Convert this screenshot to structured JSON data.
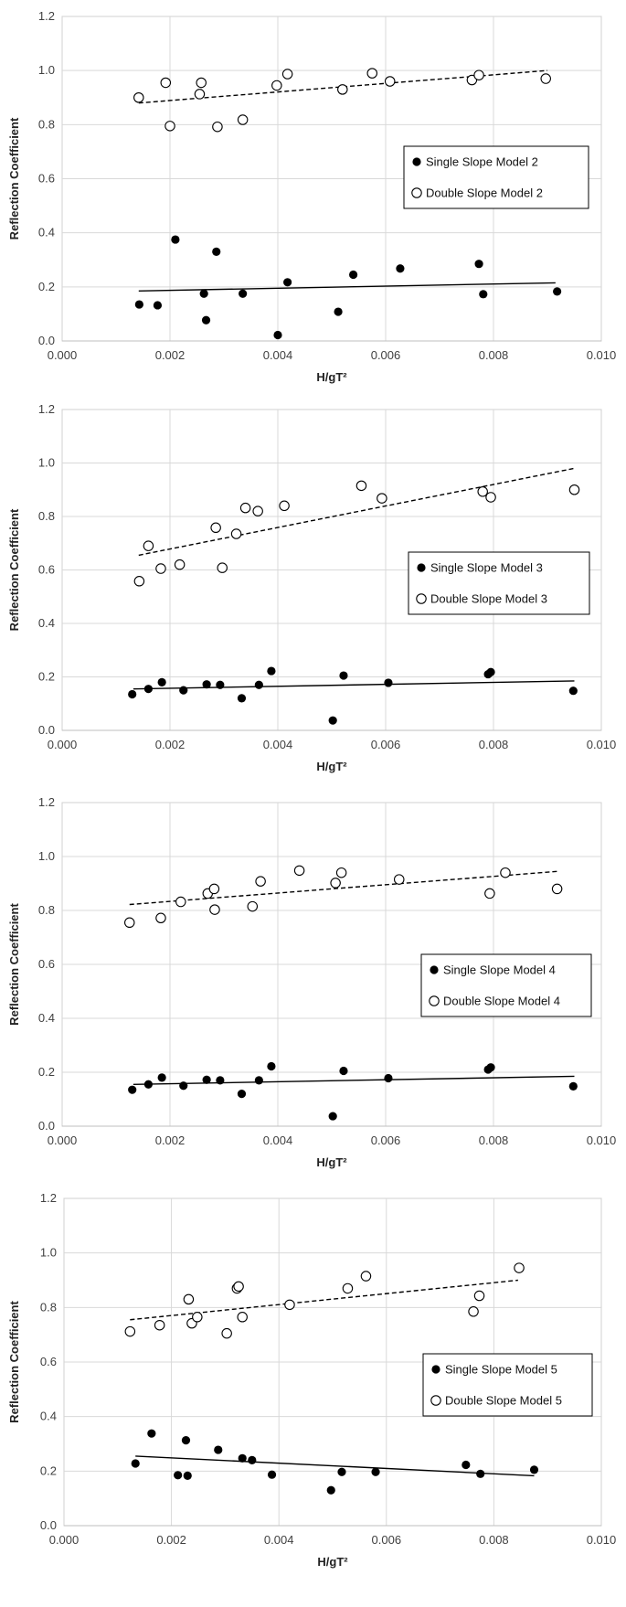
{
  "chart_data": [
    {
      "type": "scatter",
      "xlabel": "H/gT²",
      "ylabel": "Reflection Coefficient",
      "xlim": [
        0,
        0.01
      ],
      "ylim": [
        0,
        1.2
      ],
      "xticks": [
        "0.000",
        "0.002",
        "0.004",
        "0.006",
        "0.008",
        "0.010"
      ],
      "yticks": [
        "0.0",
        "0.2",
        "0.4",
        "0.6",
        "0.8",
        "1.0",
        "1.2"
      ],
      "grid": true,
      "legend_position": "right",
      "series": [
        {
          "name": "Single Slope Model 2",
          "marker": "filled-circle",
          "trend": "solid",
          "trend_line": [
            [
              0.00142,
              0.185
            ],
            [
              0.00915,
              0.215
            ]
          ],
          "points": [
            [
              0.00143,
              0.135
            ],
            [
              0.00177,
              0.132
            ],
            [
              0.0021,
              0.375
            ],
            [
              0.00263,
              0.175
            ],
            [
              0.00267,
              0.077
            ],
            [
              0.00286,
              0.33
            ],
            [
              0.00335,
              0.175
            ],
            [
              0.004,
              0.022
            ],
            [
              0.00418,
              0.217
            ],
            [
              0.00512,
              0.108
            ],
            [
              0.0054,
              0.245
            ],
            [
              0.00627,
              0.268
            ],
            [
              0.00773,
              0.285
            ],
            [
              0.00781,
              0.173
            ],
            [
              0.00918,
              0.183
            ]
          ]
        },
        {
          "name": "Double Slope Model 2",
          "marker": "open-circle",
          "trend": "dashed",
          "trend_line": [
            [
              0.00142,
              0.88
            ],
            [
              0.009,
              1.0
            ]
          ],
          "points": [
            [
              0.00142,
              0.9
            ],
            [
              0.00192,
              0.955
            ],
            [
              0.002,
              0.795
            ],
            [
              0.00255,
              0.913
            ],
            [
              0.00258,
              0.955
            ],
            [
              0.00288,
              0.792
            ],
            [
              0.00335,
              0.818
            ],
            [
              0.00398,
              0.945
            ],
            [
              0.00418,
              0.987
            ],
            [
              0.0052,
              0.93
            ],
            [
              0.00575,
              0.99
            ],
            [
              0.00608,
              0.96
            ],
            [
              0.0076,
              0.965
            ],
            [
              0.00773,
              0.983
            ],
            [
              0.00897,
              0.97
            ]
          ]
        }
      ]
    },
    {
      "type": "scatter",
      "xlabel": "H/gT²",
      "ylabel": "Reflection Coefficient",
      "xlim": [
        0,
        0.01
      ],
      "ylim": [
        0,
        1.2
      ],
      "xticks": [
        "0.000",
        "0.002",
        "0.004",
        "0.006",
        "0.008",
        "0.010"
      ],
      "yticks": [
        "0.0",
        "0.2",
        "0.4",
        "0.6",
        "0.8",
        "1.0",
        "1.2"
      ],
      "grid": true,
      "legend_position": "right",
      "series": [
        {
          "name": "Single Slope Model 3",
          "marker": "filled-circle",
          "trend": "solid",
          "trend_line": [
            [
              0.00132,
              0.155
            ],
            [
              0.0095,
              0.185
            ]
          ],
          "points": [
            [
              0.0013,
              0.135
            ],
            [
              0.0016,
              0.155
            ],
            [
              0.00185,
              0.18
            ],
            [
              0.00225,
              0.15
            ],
            [
              0.00268,
              0.172
            ],
            [
              0.00293,
              0.17
            ],
            [
              0.00333,
              0.12
            ],
            [
              0.00365,
              0.17
            ],
            [
              0.00388,
              0.222
            ],
            [
              0.00502,
              0.037
            ],
            [
              0.00522,
              0.205
            ],
            [
              0.00605,
              0.178
            ],
            [
              0.0079,
              0.21
            ],
            [
              0.00795,
              0.218
            ],
            [
              0.00948,
              0.148
            ]
          ]
        },
        {
          "name": "Double Slope Model 3",
          "marker": "open-circle",
          "trend": "dashed",
          "trend_line": [
            [
              0.00142,
              0.655
            ],
            [
              0.0095,
              0.98
            ]
          ],
          "points": [
            [
              0.00143,
              0.558
            ],
            [
              0.0016,
              0.69
            ],
            [
              0.00183,
              0.605
            ],
            [
              0.00218,
              0.62
            ],
            [
              0.00285,
              0.758
            ],
            [
              0.00297,
              0.608
            ],
            [
              0.00323,
              0.735
            ],
            [
              0.0034,
              0.832
            ],
            [
              0.00363,
              0.82
            ],
            [
              0.00412,
              0.84
            ],
            [
              0.00555,
              0.915
            ],
            [
              0.00593,
              0.868
            ],
            [
              0.0078,
              0.893
            ],
            [
              0.00795,
              0.872
            ],
            [
              0.0095,
              0.9
            ]
          ]
        }
      ]
    },
    {
      "type": "scatter",
      "xlabel": "H/gT²",
      "ylabel": "Reflection Coefficient",
      "xlim": [
        0,
        0.01
      ],
      "ylim": [
        0,
        1.2
      ],
      "xticks": [
        "0.000",
        "0.002",
        "0.004",
        "0.006",
        "0.008",
        "0.010"
      ],
      "yticks": [
        "0.0",
        "0.2",
        "0.4",
        "0.6",
        "0.8",
        "1.0",
        "1.2"
      ],
      "grid": true,
      "legend_position": "right",
      "series": [
        {
          "name": "Single Slope Model 4",
          "marker": "filled-circle",
          "trend": "solid",
          "trend_line": [
            [
              0.00132,
              0.155
            ],
            [
              0.0095,
              0.185
            ]
          ],
          "points": [
            [
              0.0013,
              0.135
            ],
            [
              0.0016,
              0.155
            ],
            [
              0.00185,
              0.18
            ],
            [
              0.00225,
              0.15
            ],
            [
              0.00268,
              0.172
            ],
            [
              0.00293,
              0.17
            ],
            [
              0.00333,
              0.12
            ],
            [
              0.00365,
              0.17
            ],
            [
              0.00388,
              0.222
            ],
            [
              0.00502,
              0.037
            ],
            [
              0.00522,
              0.205
            ],
            [
              0.00605,
              0.178
            ],
            [
              0.0079,
              0.21
            ],
            [
              0.00795,
              0.218
            ],
            [
              0.00948,
              0.148
            ]
          ]
        },
        {
          "name": "Double Slope Model 4",
          "marker": "open-circle",
          "trend": "dashed",
          "trend_line": [
            [
              0.00125,
              0.822
            ],
            [
              0.0092,
              0.945
            ]
          ],
          "points": [
            [
              0.00125,
              0.755
            ],
            [
              0.00183,
              0.772
            ],
            [
              0.0022,
              0.832
            ],
            [
              0.0027,
              0.863
            ],
            [
              0.00282,
              0.88
            ],
            [
              0.00283,
              0.803
            ],
            [
              0.00353,
              0.815
            ],
            [
              0.00368,
              0.908
            ],
            [
              0.0044,
              0.948
            ],
            [
              0.00507,
              0.902
            ],
            [
              0.00518,
              0.94
            ],
            [
              0.00625,
              0.915
            ],
            [
              0.00793,
              0.863
            ],
            [
              0.00822,
              0.94
            ],
            [
              0.00918,
              0.88
            ]
          ]
        }
      ]
    },
    {
      "type": "scatter",
      "xlabel": "H/gT²",
      "ylabel": "Reflection Coefficient",
      "xlim": [
        0,
        0.01
      ],
      "ylim": [
        0,
        1.2
      ],
      "xticks": [
        "0.000",
        "0.002",
        "0.004",
        "0.006",
        "0.008",
        "0.010"
      ],
      "yticks": [
        "0.0",
        "0.2",
        "0.4",
        "0.6",
        "0.8",
        "1.0",
        "1.2"
      ],
      "grid": true,
      "legend_position": "right",
      "series": [
        {
          "name": "Single Slope Model 5",
          "marker": "filled-circle",
          "trend": "solid",
          "trend_line": [
            [
              0.00133,
              0.255
            ],
            [
              0.00875,
              0.183
            ]
          ],
          "points": [
            [
              0.00133,
              0.228
            ],
            [
              0.00163,
              0.338
            ],
            [
              0.00212,
              0.185
            ],
            [
              0.00227,
              0.313
            ],
            [
              0.0023,
              0.183
            ],
            [
              0.00287,
              0.278
            ],
            [
              0.00332,
              0.247
            ],
            [
              0.0035,
              0.24
            ],
            [
              0.00387,
              0.187
            ],
            [
              0.00497,
              0.13
            ],
            [
              0.00517,
              0.197
            ],
            [
              0.0058,
              0.197
            ],
            [
              0.00748,
              0.223
            ],
            [
              0.00775,
              0.19
            ],
            [
              0.00875,
              0.205
            ]
          ]
        },
        {
          "name": "Double Slope Model 5",
          "marker": "open-circle",
          "trend": "dashed",
          "trend_line": [
            [
              0.00123,
              0.755
            ],
            [
              0.00845,
              0.9
            ]
          ],
          "points": [
            [
              0.00123,
              0.712
            ],
            [
              0.00178,
              0.735
            ],
            [
              0.00232,
              0.83
            ],
            [
              0.00238,
              0.742
            ],
            [
              0.00248,
              0.765
            ],
            [
              0.00303,
              0.705
            ],
            [
              0.00322,
              0.87
            ],
            [
              0.00325,
              0.877
            ],
            [
              0.00332,
              0.765
            ],
            [
              0.0042,
              0.81
            ],
            [
              0.00528,
              0.87
            ],
            [
              0.00562,
              0.915
            ],
            [
              0.00762,
              0.785
            ],
            [
              0.00773,
              0.843
            ],
            [
              0.00847,
              0.945
            ]
          ]
        }
      ]
    }
  ]
}
